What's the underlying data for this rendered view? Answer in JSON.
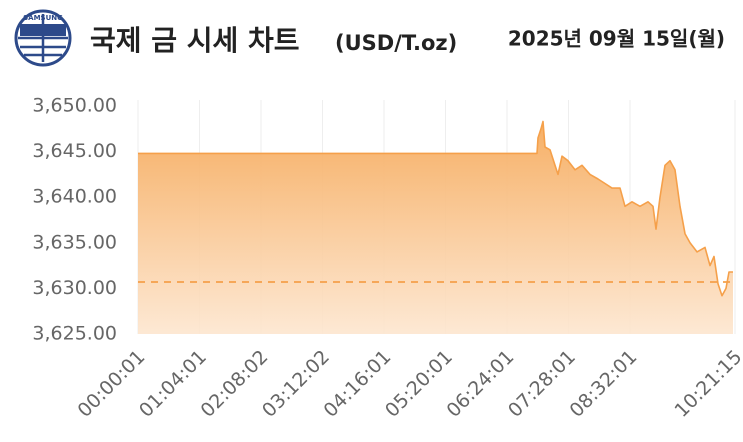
{
  "logo_text": "SAMSUNG",
  "chart_data": {
    "type": "area",
    "title": "국제 금 시세 차트",
    "title_unit": "(USD/T.oz)",
    "date": "2025년 09월 15일(월)",
    "x": [
      1,
      24913,
      24975,
      25162,
      25287,
      25412,
      25725,
      26037,
      26224,
      26474,
      26849,
      27286,
      27723,
      28223,
      28722,
      29159,
      29596,
      30096,
      30408,
      30845,
      31345,
      31844,
      32156,
      32343,
      32593,
      32905,
      33217,
      33530,
      33842,
      34154,
      34466,
      34903,
      35403,
      35715,
      35964,
      36214,
      36464,
      36714,
      36901,
      37150
    ],
    "series": [
      {
        "color": "#f5a04a",
        "values": [
          3644.8,
          3644.8,
          3646.5,
          3647.5,
          3648.3,
          3645.5,
          3645.2,
          3643.5,
          3642.5,
          3644.5,
          3644,
          3643,
          3643.5,
          3642.5,
          3642,
          3641.5,
          3641,
          3641,
          3639,
          3639.5,
          3639,
          3639.5,
          3639,
          3636.5,
          3640,
          3643.5,
          3644,
          3643,
          3639,
          3636,
          3635,
          3634,
          3634.5,
          3632.5,
          3633.5,
          3630.5,
          3629.2,
          3630,
          3631.8,
          3631.8
        ]
      }
    ],
    "reference_line": 3630.7,
    "xlim": [
      1,
      37275
    ],
    "xticks": [
      {
        "value": 1,
        "label": "00:00:01"
      },
      {
        "value": 3841,
        "label": "01:04:01"
      },
      {
        "value": 7682,
        "label": "02:08:02"
      },
      {
        "value": 11522,
        "label": "03:12:02"
      },
      {
        "value": 15361,
        "label": "04:16:01"
      },
      {
        "value": 19201,
        "label": "05:20:01"
      },
      {
        "value": 23041,
        "label": "06:24:01"
      },
      {
        "value": 26881,
        "label": "07:28:01"
      },
      {
        "value": 30721,
        "label": "08:32:01"
      },
      {
        "value": 37275,
        "label": "10:21:15"
      }
    ],
    "ylim": [
      3625,
      3650
    ],
    "yticks": [
      {
        "value": 3625,
        "label": "3,625.00"
      },
      {
        "value": 3630,
        "label": "3,630.00"
      },
      {
        "value": 3635,
        "label": "3,635.00"
      },
      {
        "value": 3640,
        "label": "3,640.00"
      },
      {
        "value": 3645,
        "label": "3,645.00"
      },
      {
        "value": 3650,
        "label": "3,650.00"
      }
    ],
    "grid": "x"
  }
}
